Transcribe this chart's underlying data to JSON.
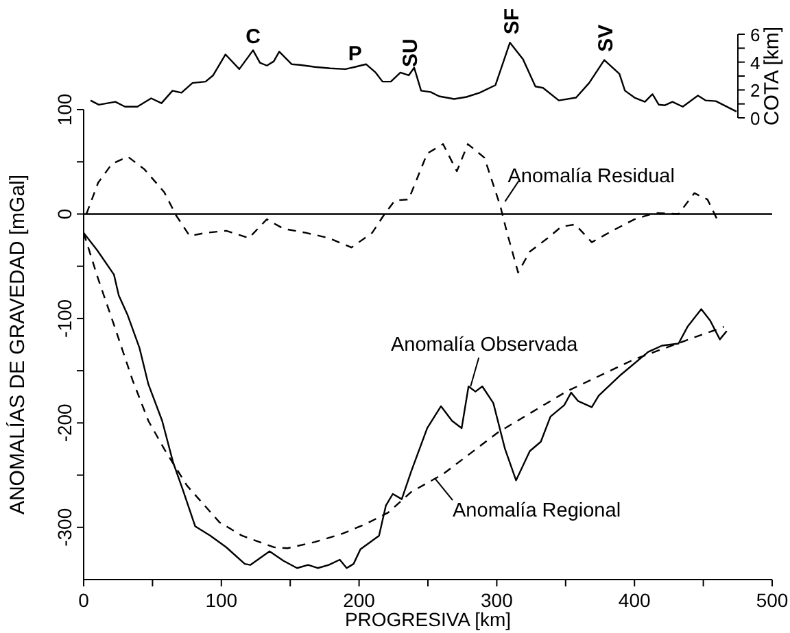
{
  "chart_data": [
    {
      "type": "line",
      "ylabel": "COTA [km]",
      "xlim": [
        0,
        475
      ],
      "xticks": [
        0,
        100,
        200,
        300,
        400
      ],
      "ylim": [
        0,
        6
      ],
      "yticks": [
        0,
        {
          "value": 1,
          "label": null
        },
        2,
        {
          "value": 3,
          "label": null
        },
        4,
        {
          "value": 5,
          "label": null
        },
        6
      ],
      "tick_labels": "y",
      "series": [
        {
          "color": "#000000",
          "line_style": "solid",
          "x": [
            5,
            11,
            23,
            30,
            39,
            49,
            56.5,
            64.5,
            71,
            79,
            88.5,
            94,
            103,
            113,
            123,
            128,
            133,
            138,
            142,
            151,
            157,
            168,
            179,
            190,
            197,
            205,
            212,
            217,
            223,
            230,
            236,
            240,
            245,
            252,
            258,
            269,
            278,
            287.5,
            299,
            309.5,
            319,
            328,
            333.5,
            345,
            357.5,
            367,
            378,
            389,
            393,
            400,
            407.5,
            413,
            417.5,
            422,
            427.5,
            435,
            446,
            451.5,
            459,
            474
          ],
          "values": [
            1.25,
            0.94,
            1.15,
            0.8,
            0.8,
            1.4,
            1.05,
            1.95,
            1.8,
            2.5,
            2.6,
            3.05,
            4.55,
            3.5,
            4.85,
            3.95,
            3.75,
            4.05,
            4.75,
            3.85,
            3.8,
            3.65,
            3.55,
            3.5,
            3.65,
            3.85,
            3.25,
            2.6,
            2.6,
            3.25,
            3.05,
            3.6,
            1.95,
            1.85,
            1.55,
            1.35,
            1.5,
            1.8,
            2.35,
            5.4,
            4.2,
            2.25,
            2.15,
            1.25,
            1.45,
            2.5,
            4.15,
            3.15,
            1.95,
            1.45,
            1.15,
            1.7,
            0.95,
            0.9,
            1.15,
            0.8,
            1.6,
            1.25,
            1.2,
            0.45
          ]
        }
      ],
      "annotations": [
        {
          "text": "C",
          "x": 123,
          "y": 4.85
        },
        {
          "text": "P",
          "x": 197,
          "y": 3.65
        },
        {
          "text": "SU",
          "x": 236,
          "y": 3.05
        },
        {
          "text": "SF",
          "x": 309.5,
          "y": 5.4
        },
        {
          "text": "SV",
          "x": 378,
          "y": 4.15
        }
      ]
    },
    {
      "type": "line",
      "xlabel": "PROGRESIVA [km]",
      "ylabel": "ANOMALÍAS DE GRAVEDAD [mGal]",
      "xlim": [
        0,
        500
      ],
      "ylim": [
        -350,
        100
      ],
      "xticks": [
        0,
        {
          "value": 50,
          "label": null
        },
        100,
        {
          "value": 150,
          "label": null
        },
        200,
        {
          "value": 250,
          "label": null
        },
        300,
        {
          "value": 350,
          "label": null
        },
        400,
        {
          "value": 450,
          "label": null
        },
        500
      ],
      "yticks": [
        {
          "value": -250,
          "label": null
        },
        -300,
        -200,
        {
          "value": -150,
          "label": null
        },
        -100,
        {
          "value": -50,
          "label": null
        },
        0,
        {
          "value": 50,
          "label": null
        },
        100
      ],
      "series": [
        {
          "color": "#000000",
          "line_style": "solid",
          "x": [
            0,
            10,
            22,
            25.5,
            32,
            40.5,
            47,
            57,
            65,
            72,
            81,
            92,
            103.5,
            117,
            121,
            135,
            145,
            155,
            163,
            170,
            178,
            186,
            191,
            196,
            201,
            214.5,
            219.5,
            224.5,
            231,
            238,
            249.5,
            259.5,
            267.5,
            274.5,
            279.5,
            284.5,
            289.5,
            297.5,
            306,
            314,
            324,
            332,
            339,
            349,
            354,
            359,
            369,
            374,
            390,
            410,
            420,
            432,
            438.5,
            448.5,
            455,
            462,
            467
          ],
          "values": [
            -18,
            -35,
            -58,
            -78,
            -97,
            -128,
            -163,
            -198,
            -238,
            -264,
            -299,
            -308,
            -319,
            -335,
            -336,
            -323,
            -332,
            -339,
            -336,
            -339,
            -336,
            -331,
            -339,
            -335,
            -321,
            -308,
            -279,
            -268,
            -273,
            -246,
            -205,
            -184,
            -198,
            -205,
            -165,
            -170,
            -165,
            -181,
            -225,
            -255,
            -227,
            -218,
            -194,
            -183,
            -171,
            -179,
            -185,
            -174,
            -154,
            -132,
            -126,
            -124,
            -108,
            -91,
            -102,
            -120,
            -112
          ]
        },
        {
          "color": "#000000",
          "line_style": "dashed",
          "x": [
            0,
            10.5,
            22,
            35.5,
            47,
            58.5,
            75,
            98.5,
            115,
            138,
            148,
            168,
            188,
            204.5,
            221,
            238,
            261,
            301,
            350.5,
            400,
            450,
            465
          ],
          "values": [
            -18,
            -62,
            -106,
            -159,
            -198,
            -225,
            -260,
            -295,
            -308,
            -319,
            -320,
            -314,
            -306,
            -297,
            -286,
            -266,
            -249,
            -209,
            -170,
            -139,
            -115,
            -108
          ]
        },
        {
          "color": "#000000",
          "line_style": "dashed",
          "x": [
            2,
            10.5,
            20.5,
            32,
            44,
            58.5,
            67,
            77,
            88.5,
            103.5,
            120,
            133,
            145,
            161.5,
            178,
            194.5,
            209.5,
            218,
            226,
            236,
            249.5,
            261,
            271,
            279,
            291,
            302.5,
            307.5,
            315.5,
            324,
            337,
            347,
            357,
            369,
            384,
            400,
            415,
            432,
            443.5,
            453,
            460
          ],
          "values": [
            0,
            30,
            48,
            55,
            43,
            21,
            -1,
            -21,
            -18,
            -16,
            -23,
            -5,
            -14,
            -18,
            -23,
            -32,
            -18,
            -1,
            13,
            14,
            58,
            67,
            41,
            67,
            54,
            8,
            -18,
            -56,
            -36,
            -23,
            -12,
            -10,
            -27,
            -16,
            -5,
            1,
            0,
            20,
            14,
            -5
          ]
        }
      ],
      "ref_lines": [
        {
          "axis": "y",
          "value": 0,
          "color": "#000000",
          "line_style": "solid"
        }
      ],
      "annotations": [
        {
          "text": "Anomalía Residual",
          "x": 306,
          "y": 12
        },
        {
          "text": "Anomalía Observada",
          "x": 281,
          "y": -165
        },
        {
          "text": "Anomalía Regional",
          "x": 255,
          "y": -253
        }
      ]
    }
  ]
}
